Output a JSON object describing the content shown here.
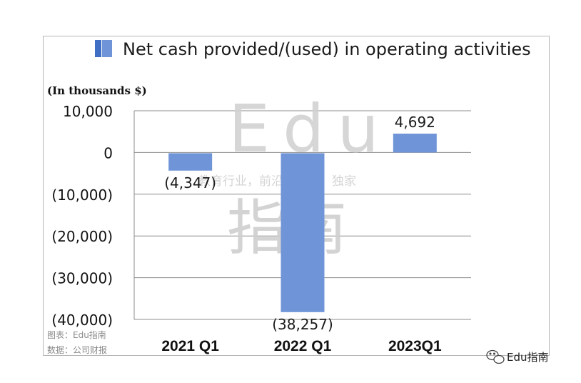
{
  "legend": {
    "label": "Net cash provided/(used) in operating activities",
    "color": "#6f95d8",
    "swatch_dark": "#3f6fc4"
  },
  "unit_label": "(In thousands $)",
  "watermark": {
    "latin": "Edu",
    "tagline": "教育行业，前沿、深度、独家",
    "cjk": "指南"
  },
  "source": {
    "line1": "图表：Edu指南",
    "line2": "数据：公司财报"
  },
  "brand": {
    "text": "Edu指南",
    "icon": "wechat-icon"
  },
  "chart_data": {
    "type": "bar",
    "subtype": "waterfall-style",
    "categories": [
      "2021 Q1",
      "2022 Q1",
      "2023Q1"
    ],
    "values": [
      -4347,
      -38257,
      4692
    ],
    "data_labels": [
      "(4,347)",
      "(38,257)",
      "4,692"
    ],
    "ytick_values": [
      10000,
      0,
      -10000,
      -20000,
      -30000,
      -40000
    ],
    "ytick_labels": [
      "10,000",
      "0",
      "(10,000)",
      "(20,000)",
      "(30,000)",
      "(40,000)"
    ],
    "ylim": [
      -40000,
      10000
    ],
    "grid": true,
    "legend_position": "top",
    "series": [
      {
        "name": "Net cash provided/(used) in operating activities",
        "values": [
          -4347,
          -38257,
          4692
        ],
        "color": "#6f95d8"
      }
    ]
  }
}
